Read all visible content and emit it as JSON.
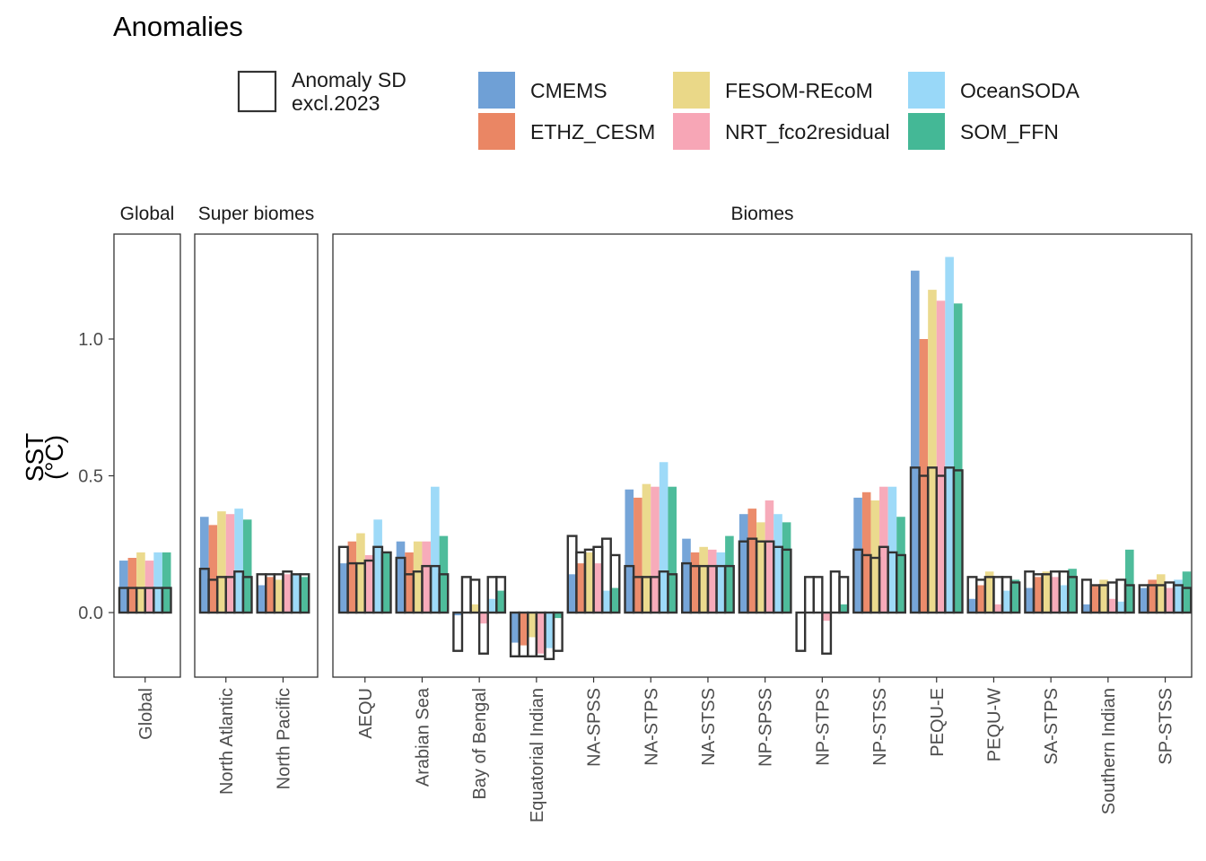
{
  "chart_data": {
    "type": "bar",
    "title": "Anomalies",
    "ylabel": "SST",
    "ylabel_unit": "(°C)",
    "ylim": [
      -0.25,
      1.38
    ],
    "y_ticks": [
      0.0,
      0.5,
      1.0
    ],
    "y_tick_labels": [
      "0.0",
      "0.5",
      "1.0"
    ],
    "grid": false,
    "legend": {
      "position": "top",
      "outline_label_line1": "Anomaly SD",
      "outline_label_line2": "excl.2023",
      "entries": [
        "CMEMS",
        "ETHZ_CESM",
        "FESOM-REcoM",
        "NRT_fco2residual",
        "OceanSODA",
        "SOM_FFN"
      ]
    },
    "series_colors": [
      "#6fa0d6",
      "#ea8664",
      "#ead888",
      "#f7a6b6",
      "#99d8f8",
      "#44b896"
    ],
    "panels": [
      {
        "name": "Global",
        "categories": [
          "Global"
        ],
        "series": [
          {
            "name": "CMEMS",
            "values": [
              0.19
            ]
          },
          {
            "name": "ETHZ_CESM",
            "values": [
              0.2
            ]
          },
          {
            "name": "FESOM-REcoM",
            "values": [
              0.22
            ]
          },
          {
            "name": "NRT_fco2residual",
            "values": [
              0.19
            ]
          },
          {
            "name": "OceanSODA",
            "values": [
              0.22
            ]
          },
          {
            "name": "SOM_FFN",
            "values": [
              0.22
            ]
          }
        ],
        "anomaly_sd": [
          [
            0.09,
            0.09,
            0.09,
            0.09,
            0.09,
            0.09
          ]
        ]
      },
      {
        "name": "Super biomes",
        "categories": [
          "North Atlantic",
          "North Pacific"
        ],
        "series": [
          {
            "name": "CMEMS",
            "values": [
              0.35,
              0.1
            ]
          },
          {
            "name": "ETHZ_CESM",
            "values": [
              0.32,
              0.13
            ]
          },
          {
            "name": "FESOM-REcoM",
            "values": [
              0.37,
              0.12
            ]
          },
          {
            "name": "NRT_fco2residual",
            "values": [
              0.36,
              0.14
            ]
          },
          {
            "name": "OceanSODA",
            "values": [
              0.38,
              0.14
            ]
          },
          {
            "name": "SOM_FFN",
            "values": [
              0.34,
              0.13
            ]
          }
        ],
        "anomaly_sd": [
          [
            0.16,
            0.12,
            0.13,
            0.13,
            0.15,
            0.13
          ],
          [
            0.14,
            0.14,
            0.14,
            0.15,
            0.14,
            0.14
          ]
        ]
      },
      {
        "name": "Biomes",
        "categories": [
          "AEQU",
          "Arabian Sea",
          "Bay of Bengal",
          "Equatorial Indian",
          "NA-SPSS",
          "NA-STPS",
          "NA-STSS",
          "NP-SPSS",
          "NP-STPS",
          "NP-STSS",
          "PEQU-E",
          "PEQU-W",
          "SA-STPS",
          "Southern Indian",
          "SP-STSS"
        ],
        "series": [
          {
            "name": "CMEMS",
            "values": [
              0.18,
              0.26,
              -0.01,
              -0.11,
              0.14,
              0.45,
              0.27,
              0.36,
              0.0,
              0.42,
              1.25,
              0.05,
              0.09,
              0.03,
              0.09
            ]
          },
          {
            "name": "ETHZ_CESM",
            "values": [
              0.26,
              0.22,
              0.0,
              -0.12,
              0.18,
              0.42,
              0.22,
              0.38,
              0.0,
              0.44,
              1.0,
              0.1,
              0.13,
              0.1,
              0.12
            ]
          },
          {
            "name": "FESOM-REcoM",
            "values": [
              0.29,
              0.26,
              0.03,
              -0.09,
              0.22,
              0.47,
              0.24,
              0.33,
              0.0,
              0.41,
              1.18,
              0.15,
              0.15,
              0.12,
              0.14
            ]
          },
          {
            "name": "NRT_fco2residual",
            "values": [
              0.21,
              0.26,
              -0.04,
              -0.15,
              0.18,
              0.46,
              0.23,
              0.41,
              -0.03,
              0.46,
              1.14,
              0.03,
              0.13,
              0.05,
              0.09
            ]
          },
          {
            "name": "OceanSODA",
            "values": [
              0.34,
              0.46,
              0.05,
              -0.13,
              0.08,
              0.55,
              0.22,
              0.36,
              0.0,
              0.46,
              1.3,
              0.08,
              0.1,
              0.04,
              0.12
            ]
          },
          {
            "name": "SOM_FFN",
            "values": [
              0.22,
              0.28,
              0.08,
              -0.02,
              0.09,
              0.46,
              0.28,
              0.33,
              0.03,
              0.35,
              1.13,
              0.12,
              0.16,
              0.23,
              0.15
            ]
          }
        ],
        "anomaly_sd": [
          [
            0.24,
            0.18,
            0.18,
            0.19,
            0.24,
            0.22
          ],
          [
            0.2,
            0.14,
            0.15,
            0.17,
            0.17,
            0.14
          ],
          [
            -0.14,
            0.13,
            0.12,
            -0.15,
            0.13,
            0.13
          ],
          [
            -0.16,
            -0.16,
            -0.16,
            -0.16,
            -0.17,
            -0.14
          ],
          [
            0.28,
            0.22,
            0.23,
            0.24,
            0.27,
            0.21
          ],
          [
            0.17,
            0.13,
            0.13,
            0.13,
            0.15,
            0.14
          ],
          [
            0.18,
            0.17,
            0.17,
            0.17,
            0.17,
            0.17
          ],
          [
            0.26,
            0.27,
            0.26,
            0.26,
            0.24,
            0.23
          ],
          [
            -0.14,
            0.13,
            0.13,
            -0.15,
            0.15,
            0.13
          ],
          [
            0.23,
            0.21,
            0.2,
            0.24,
            0.22,
            0.21
          ],
          [
            0.53,
            0.5,
            0.53,
            0.5,
            0.53,
            0.52
          ],
          [
            0.13,
            0.12,
            0.13,
            0.13,
            0.13,
            0.11
          ],
          [
            0.15,
            0.14,
            0.14,
            0.15,
            0.15,
            0.13
          ],
          [
            0.12,
            0.1,
            0.1,
            0.11,
            0.12,
            0.1
          ],
          [
            0.1,
            0.1,
            0.1,
            0.11,
            0.1,
            0.09
          ]
        ]
      }
    ]
  }
}
